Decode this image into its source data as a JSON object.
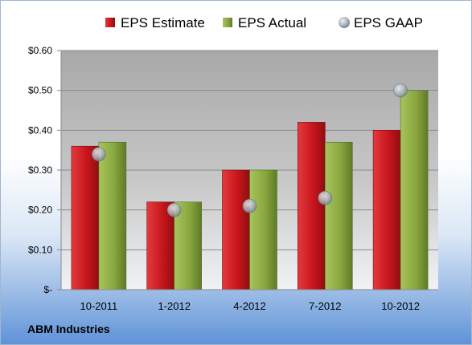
{
  "company": "ABM Industries",
  "chart_data": {
    "type": "bar",
    "categories": [
      "10-2011",
      "1-2012",
      "4-2012",
      "7-2012",
      "10-2012"
    ],
    "series": [
      {
        "name": "EPS Estimate",
        "type": "bar",
        "color": "#c0161b",
        "values": [
          0.36,
          0.22,
          0.3,
          0.42,
          0.4
        ]
      },
      {
        "name": "EPS Actual",
        "type": "bar",
        "color": "#7f9e3a",
        "values": [
          0.37,
          0.22,
          0.3,
          0.37,
          0.5
        ]
      },
      {
        "name": "EPS GAAP",
        "type": "scatter",
        "color": "#9aa3ad",
        "values": [
          0.34,
          0.2,
          0.21,
          0.23,
          0.5
        ]
      }
    ],
    "yticks": [
      "$-",
      "$0.10",
      "$0.20",
      "$0.30",
      "$0.40",
      "$0.50",
      "$0.60"
    ],
    "ylim": [
      0,
      0.6
    ],
    "grid": true,
    "legend": "top"
  }
}
